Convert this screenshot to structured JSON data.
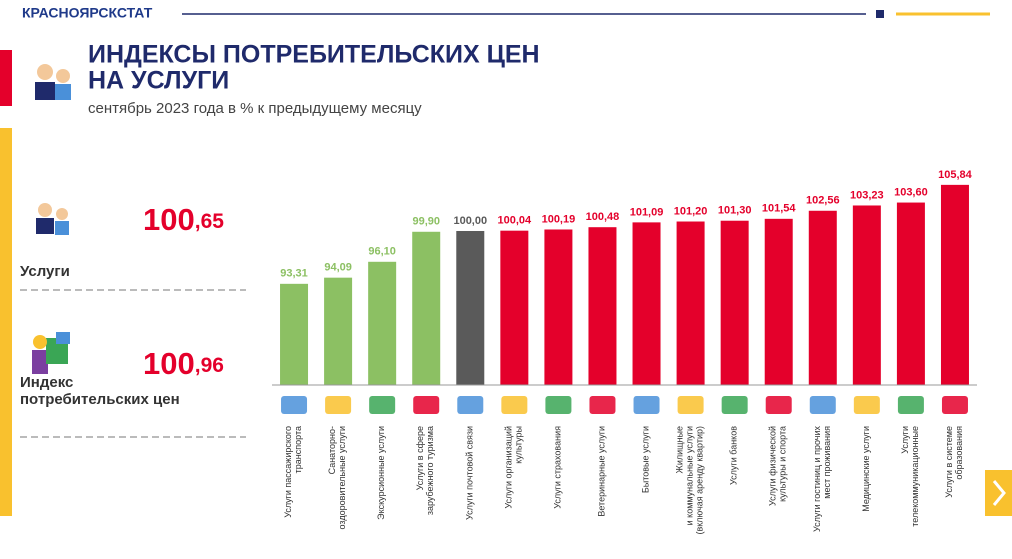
{
  "header": {
    "org": "КРАСНОЯРСКСТАТ",
    "title": [
      "ИНДЕКСЫ ПОТРЕБИТЕЛЬСКИХ ЦЕН",
      "НА УСЛУГИ"
    ],
    "subtitle": "сентябрь 2023 года в % к предыдущему месяцу"
  },
  "summary": [
    {
      "value": "100,65",
      "label": "Услуги"
    },
    {
      "value": "100,96",
      "label": "Индекс\nпотребительских цен"
    }
  ],
  "chart_data": {
    "type": "bar",
    "categories": [
      "Услуги пассажирского\nтранспорта",
      "Санаторно-\nоздоровительные услуги",
      "Экскурсионные услуги",
      "Услуги в сфере\nзарубежного туризма",
      "Услуги почтовой связи",
      "Услуги организаций\nкультуры",
      "Услуги страхования",
      "Ветеринарные услуги",
      "Бытовые услуги",
      "Жилищные\nи коммунальные услуги\n(включая аренду квартир)",
      "Услуги банков",
      "Услуги физической\nкультуры и спорта",
      "Услуги гостиниц и прочих\nмест проживания",
      "Медицинские услуги",
      "Услуги\nтелекоммуникационные",
      "Услуги в системе\nобразования"
    ],
    "values": [
      93.31,
      94.09,
      96.1,
      99.9,
      100.0,
      100.04,
      100.19,
      100.48,
      101.09,
      101.2,
      101.3,
      101.54,
      102.56,
      103.23,
      103.6,
      105.84
    ],
    "value_labels": [
      "93,31",
      "94,09",
      "96,10",
      "99,90",
      "100,00",
      "100,04",
      "100,19",
      "100,48",
      "101,09",
      "101,20",
      "101,30",
      "101,54",
      "102,56",
      "103,23",
      "103,60",
      "105,84"
    ],
    "colors": [
      "#8cc063",
      "#8cc063",
      "#8cc063",
      "#8cc063",
      "#5a5a5a",
      "#e4002b",
      "#e4002b",
      "#e4002b",
      "#e4002b",
      "#e4002b",
      "#e4002b",
      "#e4002b",
      "#e4002b",
      "#e4002b",
      "#e4002b",
      "#e4002b"
    ],
    "ylim": [
      80.5,
      106
    ]
  }
}
